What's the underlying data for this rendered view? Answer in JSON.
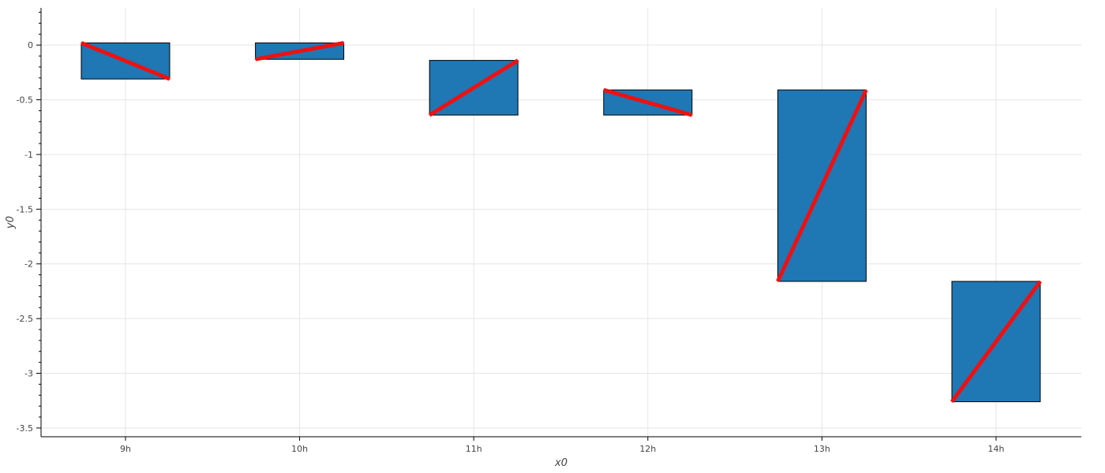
{
  "chart_data": {
    "type": "candlestick-waterfall",
    "xlabel": "x0",
    "ylabel": "y0",
    "categories": [
      "9h",
      "10h",
      "11h",
      "12h",
      "13h",
      "14h"
    ],
    "ylim": [
      -3.58,
      0.34
    ],
    "y_ticks": [
      0,
      -0.5,
      -1,
      -1.5,
      -2,
      -2.5,
      -3,
      -3.5
    ],
    "y_tick_labels": [
      "0",
      "-0.5",
      "-1",
      "-1.5",
      "-2",
      "-2.5",
      "-3",
      "-3.5"
    ],
    "grid": true,
    "legend": "none",
    "bars": [
      {
        "category": "9h",
        "start": 0.02,
        "end": -0.31
      },
      {
        "category": "10h",
        "start": -0.13,
        "end": 0.02
      },
      {
        "category": "11h",
        "start": -0.64,
        "end": -0.14
      },
      {
        "category": "12h",
        "start": -0.41,
        "end": -0.64
      },
      {
        "category": "13h",
        "start": -2.16,
        "end": -0.41
      },
      {
        "category": "14h",
        "start": -3.26,
        "end": -2.16
      }
    ],
    "colors": {
      "bar_fill": "#1f77b4",
      "bar_stroke": "#000000",
      "line": "#ee1111",
      "grid": "#e5e5e5",
      "axis": "#000000"
    }
  }
}
